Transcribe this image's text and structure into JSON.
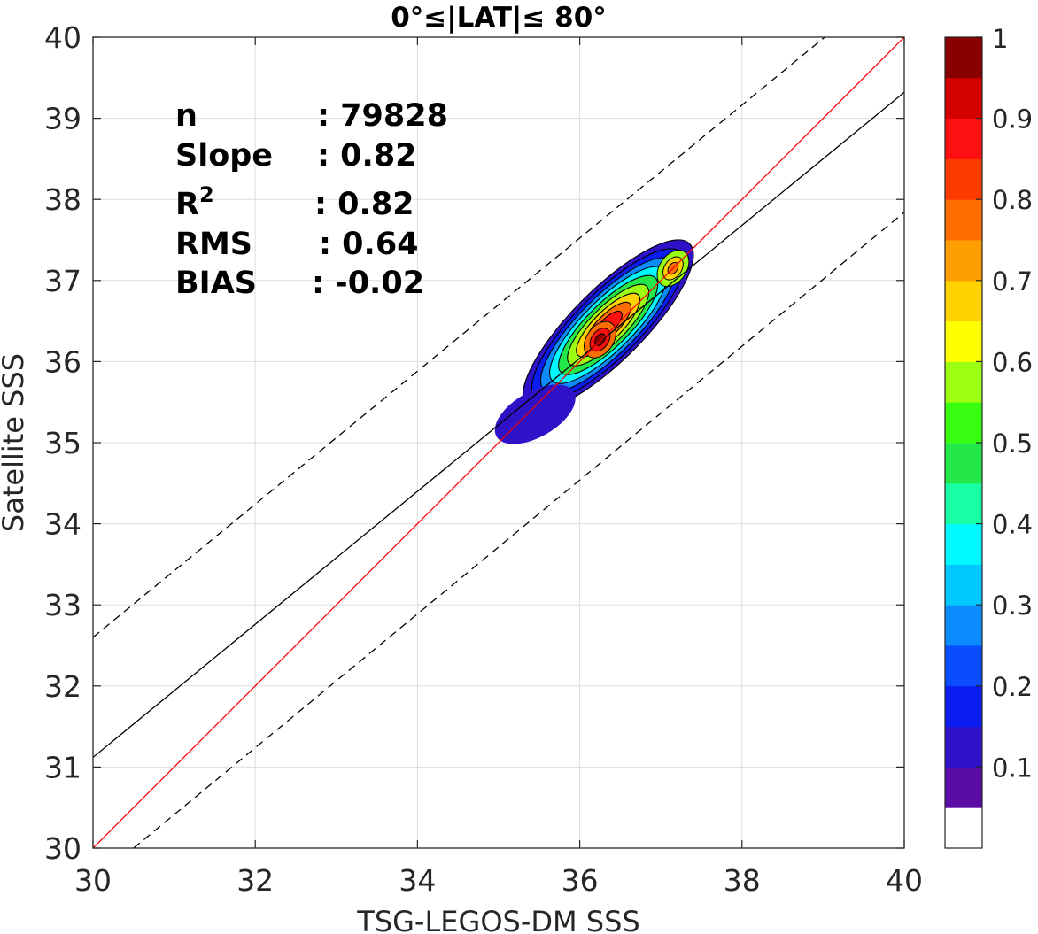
{
  "chart_data": {
    "type": "heatmap",
    "subtype": "density-contour-scatter",
    "title": "0°≤|LAT|≤ 80°",
    "xlabel": "TSG-LEGOS-DM SSS",
    "ylabel": "Satellite SSS",
    "xlim": [
      30,
      40
    ],
    "ylim": [
      30,
      40
    ],
    "xticks": [
      "30",
      "32",
      "34",
      "36",
      "38",
      "40"
    ],
    "yticks": [
      "30",
      "31",
      "32",
      "33",
      "34",
      "35",
      "36",
      "37",
      "38",
      "39",
      "40"
    ],
    "grid": true,
    "stats": [
      {
        "label": "n",
        "value": ": 79828"
      },
      {
        "label": "Slope",
        "value": ": 0.82"
      },
      {
        "label": "R",
        "sup": "2",
        "value": ": 0.82"
      },
      {
        "label": "RMS",
        "value": ": 0.64"
      },
      {
        "label": "BIAS",
        "value": ": -0.02"
      }
    ],
    "lines": {
      "one_to_one": {
        "color": "#ff0000",
        "x": [
          30,
          40
        ],
        "y": [
          30,
          40
        ]
      },
      "fit": {
        "color": "#000000",
        "style": "solid",
        "x": [
          30,
          40
        ],
        "y": [
          31.12,
          39.32
        ]
      },
      "upper_bound": {
        "color": "#000000",
        "style": "dashed",
        "x": [
          30,
          39.02
        ],
        "y": [
          32.6,
          40
        ]
      },
      "lower_bound": {
        "color": "#000000",
        "style": "dashed",
        "x": [
          30.5,
          40
        ],
        "y": [
          30,
          37.84
        ]
      }
    },
    "density_peaks": [
      {
        "x": 36.25,
        "y": 36.27,
        "value": 1.0
      },
      {
        "x": 37.15,
        "y": 37.15,
        "value": 0.8
      }
    ],
    "contour_levels": [
      0.05,
      0.15,
      0.25,
      0.35,
      0.45,
      0.55,
      0.65,
      0.75,
      0.85,
      0.95
    ],
    "colorbar": {
      "ticks": [
        "0.1",
        "0.2",
        "0.3",
        "0.4",
        "0.5",
        "0.6",
        "0.7",
        "0.8",
        "0.9",
        "1"
      ],
      "tick_values": [
        0.1,
        0.2,
        0.3,
        0.4,
        0.5,
        0.6,
        0.7,
        0.8,
        0.9,
        1.0
      ],
      "colors": [
        "#ffffff",
        "#5b0ba6",
        "#2e12c8",
        "#0a1cf0",
        "#0a4cff",
        "#0a8cff",
        "#00c8ff",
        "#00f8ff",
        "#19ffa6",
        "#24e84a",
        "#38ff12",
        "#9cff12",
        "#ffff00",
        "#ffd200",
        "#ff9e00",
        "#ff6e00",
        "#ff3a00",
        "#ff1010",
        "#d40000",
        "#8a0000"
      ]
    }
  }
}
